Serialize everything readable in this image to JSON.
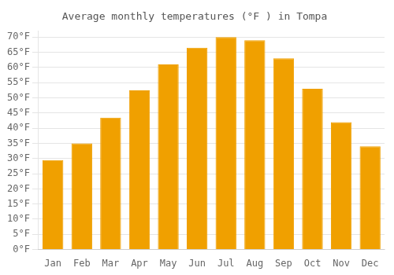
{
  "chart_data": {
    "type": "bar",
    "title": "Average monthly temperatures (°F ) in Tompa",
    "categories": [
      "Jan",
      "Feb",
      "Mar",
      "Apr",
      "May",
      "Jun",
      "Jul",
      "Aug",
      "Sep",
      "Oct",
      "Nov",
      "Dec"
    ],
    "values": [
      29.5,
      35.0,
      43.5,
      52.5,
      61.0,
      66.5,
      70.0,
      69.0,
      63.0,
      53.0,
      42.0,
      34.0
    ],
    "color": "#F0A000",
    "ylim": [
      0,
      72
    ],
    "yticks": [
      {
        "value": 0,
        "label": "0°F"
      },
      {
        "value": 5,
        "label": "5°F"
      },
      {
        "value": 10,
        "label": "10°F"
      },
      {
        "value": 15,
        "label": "15°F"
      },
      {
        "value": 20,
        "label": "20°F"
      },
      {
        "value": 25,
        "label": "25°F"
      },
      {
        "value": 30,
        "label": "30°F"
      },
      {
        "value": 35,
        "label": "35°F"
      },
      {
        "value": 40,
        "label": "40°F"
      },
      {
        "value": 45,
        "label": "45°F"
      },
      {
        "value": 50,
        "label": "50°F"
      },
      {
        "value": 55,
        "label": "55°F"
      },
      {
        "value": 60,
        "label": "60°F"
      },
      {
        "value": 65,
        "label": "65°F"
      },
      {
        "value": 70,
        "label": "70°F"
      }
    ],
    "grid": true
  }
}
